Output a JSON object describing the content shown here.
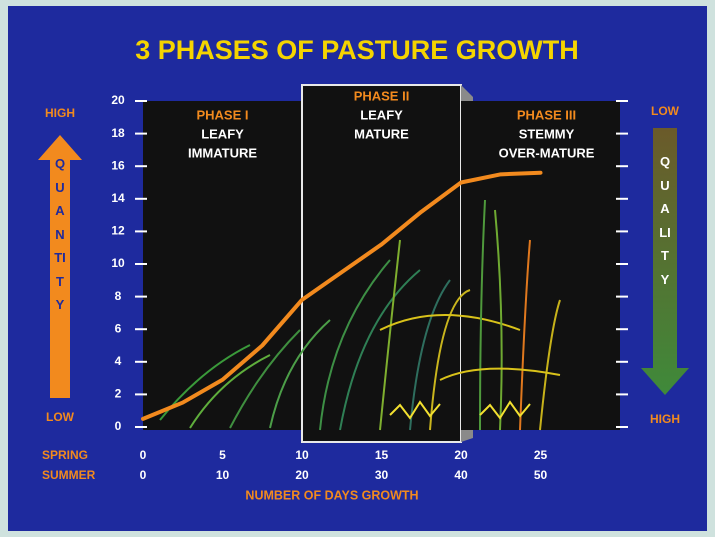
{
  "chart_data": {
    "type": "line",
    "title": "3 PHASES OF PASTURE GROWTH",
    "x": [
      0,
      2.5,
      5,
      7.5,
      10,
      12.5,
      15,
      17.5,
      20,
      22.5,
      25
    ],
    "values": [
      0.5,
      1.5,
      2.9,
      5,
      7.8,
      9.5,
      11.2,
      13.2,
      15,
      15.5,
      15.6
    ],
    "color": "#f28a1e",
    "xlim": [
      0,
      30
    ],
    "xticks": [
      0,
      5,
      10,
      15,
      20,
      25
    ],
    "xtick_row_label": "SPRING",
    "x2lim": [
      0,
      60
    ],
    "x2ticks": [
      0,
      10,
      20,
      30,
      40,
      50
    ],
    "x2tick_row_label": "SUMMER",
    "xlabel": "NUMBER OF DAYS GROWTH",
    "ylim": [
      0,
      20
    ],
    "yticks": [
      0,
      2,
      4,
      6,
      8,
      10,
      12,
      14,
      16,
      18,
      20
    ],
    "phases": [
      {
        "range": [
          0,
          10
        ],
        "name": "PHASE I",
        "lines": [
          "LEAFY",
          "IMMATURE"
        ]
      },
      {
        "range": [
          10,
          20
        ],
        "name": "PHASE II",
        "lines": [
          "LEAFY",
          "MATURE"
        ]
      },
      {
        "range": [
          20,
          30
        ],
        "name": "PHASE III",
        "lines": [
          "STEMMY",
          "OVER-MATURE"
        ]
      }
    ],
    "left_scale": {
      "top": "HIGH",
      "word": "QUANTITY",
      "bottom": "LOW"
    },
    "right_scale": {
      "top": "LOW",
      "word": "QUALITY",
      "bottom": "HIGH"
    }
  }
}
